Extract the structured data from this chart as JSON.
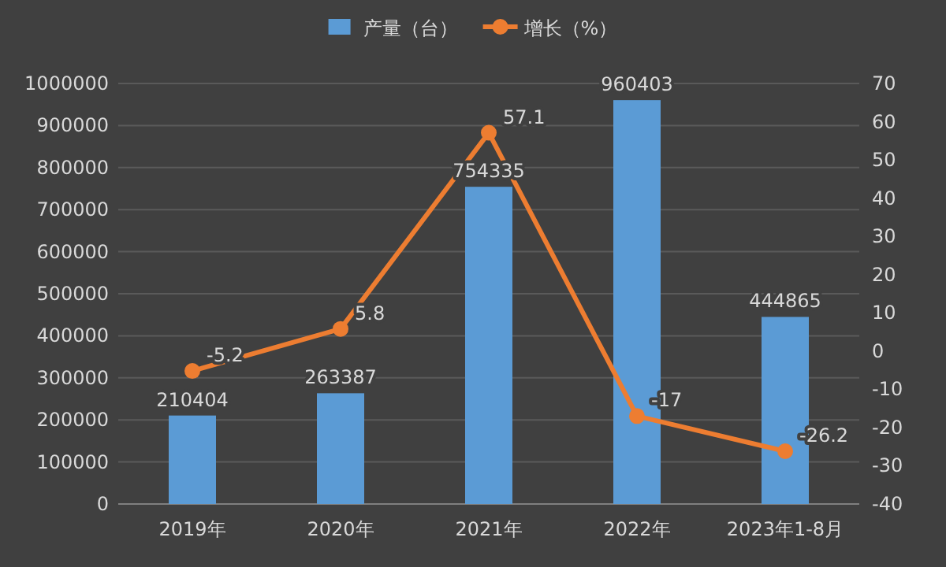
{
  "chart_data": {
    "type": "bar",
    "categories": [
      "2019年",
      "2020年",
      "2021年",
      "2022年",
      "2023年1-8月"
    ],
    "series": [
      {
        "name": "产量（台）",
        "color": "#5b9bd5",
        "values": [
          210404,
          263387,
          754335,
          960403,
          444865
        ]
      },
      {
        "name": "增长（%）",
        "type": "line",
        "axis": "y2",
        "color": "#ed7d31",
        "marker": "circle",
        "values": [
          -5.2,
          5.8,
          57.1,
          -17,
          -26.2
        ]
      }
    ],
    "ylim": [
      0,
      1000000
    ],
    "yticks": [
      0,
      100000,
      200000,
      300000,
      400000,
      500000,
      600000,
      700000,
      800000,
      900000,
      1000000
    ],
    "y2lim": [
      -40,
      70
    ],
    "y2ticks": [
      -40,
      -30,
      -20,
      -10,
      0,
      10,
      20,
      30,
      40,
      50,
      60,
      70
    ],
    "grid": "y",
    "legend": "top",
    "data_labels": true
  }
}
